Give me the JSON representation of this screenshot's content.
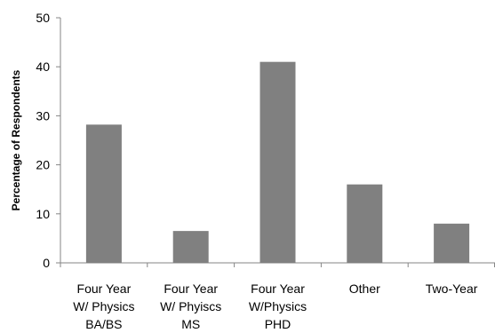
{
  "chart_data": {
    "type": "bar",
    "categories": [
      [
        "Four Year",
        "W/ Physics",
        "BA/BS"
      ],
      [
        "Four Year",
        "W/ Phyiscs",
        "MS"
      ],
      [
        "Four Year",
        "W/Physics",
        "PHD"
      ],
      [
        "Other"
      ],
      [
        "Two-Year"
      ]
    ],
    "values": [
      28.2,
      6.5,
      41,
      16,
      8
    ],
    "title": "",
    "xlabel": "",
    "ylabel": "Percentage of Respondents",
    "ylim": [
      0,
      50
    ],
    "yticks": [
      0,
      10,
      20,
      30,
      40,
      50
    ],
    "grid": false,
    "bar_color": "#808080"
  }
}
